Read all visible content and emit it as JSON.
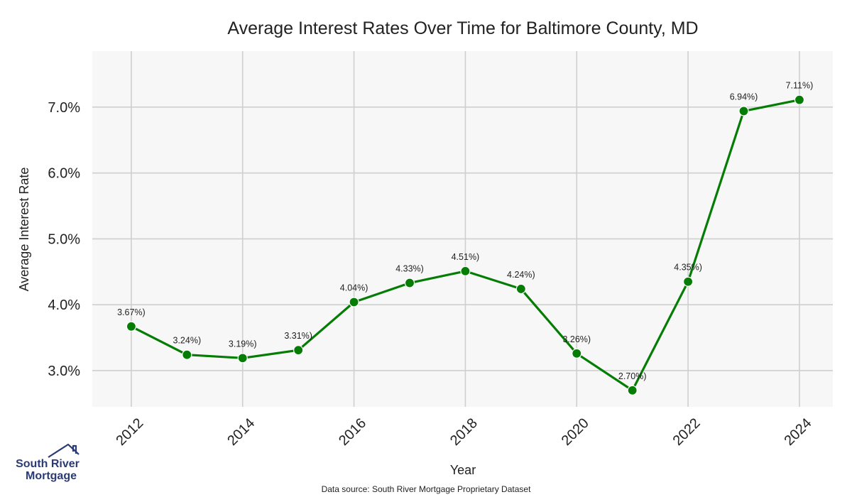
{
  "chart_data": {
    "type": "line",
    "title": "Average Interest Rates Over Time for Baltimore County, MD",
    "xlabel": "Year",
    "ylabel": "Average Interest Rate",
    "x": [
      2012,
      2013,
      2014,
      2015,
      2016,
      2017,
      2018,
      2019,
      2020,
      2021,
      2022,
      2023,
      2024
    ],
    "series": [
      {
        "name": "Average Interest Rate",
        "values": [
          3.67,
          3.24,
          3.19,
          3.31,
          4.04,
          4.33,
          4.51,
          4.24,
          3.26,
          2.7,
          4.35,
          6.94,
          7.11
        ],
        "labels": [
          "3.67%)",
          "3.24%)",
          "3.19%)",
          "3.31%)",
          "4.04%)",
          "4.33%)",
          "4.51%)",
          "4.24%)",
          "3.26%)",
          "2.70%)",
          "4.35%)",
          "6.94%)",
          "7.11%)"
        ],
        "color": "#057d05"
      }
    ],
    "xticks": [
      2012,
      2014,
      2016,
      2018,
      2020,
      2022,
      2024
    ],
    "xtick_labels": [
      "2012",
      "2014",
      "2016",
      "2018",
      "2020",
      "2022",
      "2024"
    ],
    "yticks": [
      3.0,
      4.0,
      5.0,
      6.0,
      7.0
    ],
    "ytick_labels": [
      "3.0%",
      "4.0%",
      "5.0%",
      "6.0%",
      "7.0%"
    ],
    "xlim": [
      2011.3,
      2024.6
    ],
    "ylim": [
      2.45,
      7.85
    ],
    "grid": true,
    "plot_background": "#f7f7f7",
    "source_note": "Data source: South River Mortgage Proprietary Dataset"
  },
  "logo": {
    "line1": "South River",
    "line2": "Mortgage",
    "color": "#2a3a74"
  }
}
